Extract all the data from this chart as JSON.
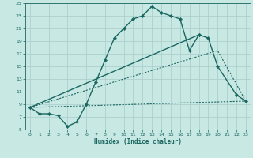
{
  "xlabel": "Humidex (Indice chaleur)",
  "xlim": [
    -0.5,
    23.5
  ],
  "ylim": [
    5,
    25
  ],
  "yticks": [
    5,
    7,
    9,
    11,
    13,
    15,
    17,
    19,
    21,
    23,
    25
  ],
  "xticks": [
    0,
    1,
    2,
    3,
    4,
    5,
    6,
    7,
    8,
    9,
    10,
    11,
    12,
    13,
    14,
    15,
    16,
    17,
    18,
    19,
    20,
    21,
    22,
    23
  ],
  "bg_color": "#c8e8e4",
  "grid_color": "#a8ccca",
  "line_color": "#1a6660",
  "line1_x": [
    0,
    1,
    2,
    3,
    4,
    5,
    6,
    7,
    8,
    9,
    10,
    11,
    12,
    13,
    14,
    15,
    16,
    17,
    18
  ],
  "line1_y": [
    8.5,
    7.5,
    7.5,
    7.2,
    5.5,
    6.2,
    9.0,
    12.5,
    16.0,
    19.5,
    21.0,
    22.5,
    23.0,
    24.5,
    23.5,
    23.0,
    22.5,
    17.5,
    20.0
  ],
  "line2_x": [
    0,
    18,
    19,
    20,
    22,
    23
  ],
  "line2_y": [
    8.5,
    20.0,
    19.5,
    15.0,
    10.5,
    9.5
  ],
  "line3_x": [
    0,
    23
  ],
  "line3_y": [
    8.5,
    9.5
  ],
  "line4_x": [
    0,
    20,
    23
  ],
  "line4_y": [
    8.5,
    17.5,
    9.5
  ]
}
